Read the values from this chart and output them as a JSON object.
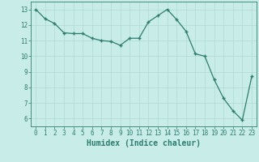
{
  "x": [
    0,
    1,
    2,
    3,
    4,
    5,
    6,
    7,
    8,
    9,
    10,
    11,
    12,
    13,
    14,
    15,
    16,
    17,
    18,
    19,
    20,
    21,
    22,
    23
  ],
  "y": [
    13.0,
    12.4,
    12.1,
    11.5,
    11.45,
    11.45,
    11.15,
    11.0,
    10.95,
    10.7,
    11.15,
    11.15,
    12.2,
    12.6,
    13.0,
    12.35,
    11.6,
    10.15,
    10.0,
    8.5,
    7.3,
    6.5,
    5.9,
    8.7
  ],
  "line_color": "#2e7d6e",
  "marker": "+",
  "markersize": 3.5,
  "linewidth": 0.9,
  "bg_color": "#c8ece8",
  "grid_color": "#b0d8d2",
  "xlabel": "Humidex (Indice chaleur)",
  "xlabel_fontsize": 7,
  "xtick_labels": [
    "0",
    "1",
    "2",
    "3",
    "4",
    "5",
    "6",
    "7",
    "8",
    "9",
    "10",
    "11",
    "12",
    "13",
    "14",
    "15",
    "16",
    "17",
    "18",
    "19",
    "20",
    "21",
    "22",
    "23"
  ],
  "ytick_labels": [
    "6",
    "7",
    "8",
    "9",
    "10",
    "11",
    "12",
    "13"
  ],
  "ylim": [
    5.5,
    13.5
  ],
  "xlim": [
    -0.5,
    23.5
  ],
  "yticks": [
    6,
    7,
    8,
    9,
    10,
    11,
    12,
    13
  ],
  "xticks": [
    0,
    1,
    2,
    3,
    4,
    5,
    6,
    7,
    8,
    9,
    10,
    11,
    12,
    13,
    14,
    15,
    16,
    17,
    18,
    19,
    20,
    21,
    22,
    23
  ],
  "tick_fontsize": 5.5,
  "axis_color": "#2e7d6e",
  "markeredgewidth": 1.0
}
